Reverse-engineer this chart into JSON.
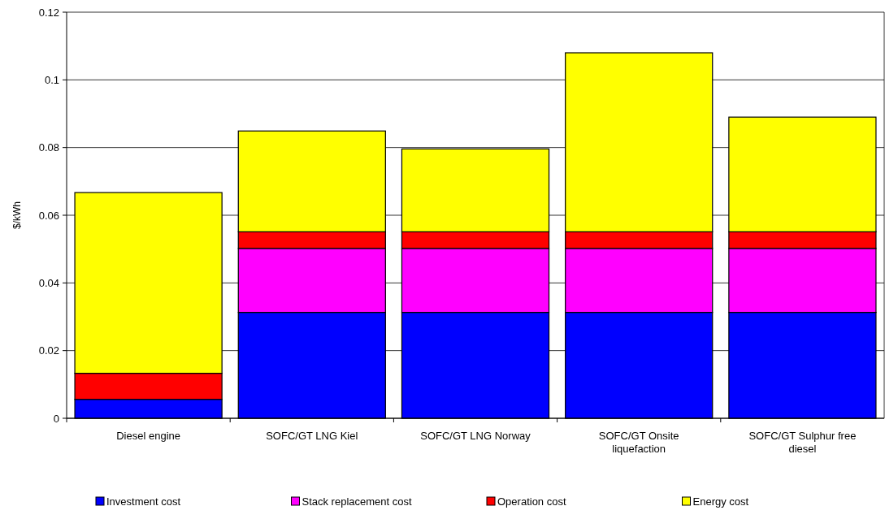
{
  "chart_data": {
    "type": "bar",
    "stacked": true,
    "ylabel": "$/kWh",
    "categories": [
      "Diesel engine",
      "SOFC/GT LNG Kiel",
      "SOFC/GT LNG Norway",
      "SOFC/GT Onsite liquefaction",
      "SOFC/GT Sulphur free diesel"
    ],
    "series": [
      {
        "name": "Investment cost",
        "color": "#0000ff",
        "values": [
          0.0056,
          0.0313,
          0.0313,
          0.0313,
          0.0313
        ]
      },
      {
        "name": "Stack replacement cost",
        "color": "#ff00ff",
        "values": [
          0,
          0.0189,
          0.0189,
          0.0189,
          0.0189
        ]
      },
      {
        "name": "Operation cost",
        "color": "#ff0000",
        "values": [
          0.0077,
          0.0049,
          0.0049,
          0.0049,
          0.0049
        ]
      },
      {
        "name": "Energy cost",
        "color": "#ffff00",
        "values": [
          0.0534,
          0.0298,
          0.0245,
          0.0529,
          0.0339
        ]
      }
    ],
    "ylim": [
      0,
      0.12
    ],
    "yticks": [
      0,
      0.02,
      0.04,
      0.06,
      0.08,
      0.1,
      0.12
    ],
    "grid": "y",
    "legend": "bottom"
  }
}
